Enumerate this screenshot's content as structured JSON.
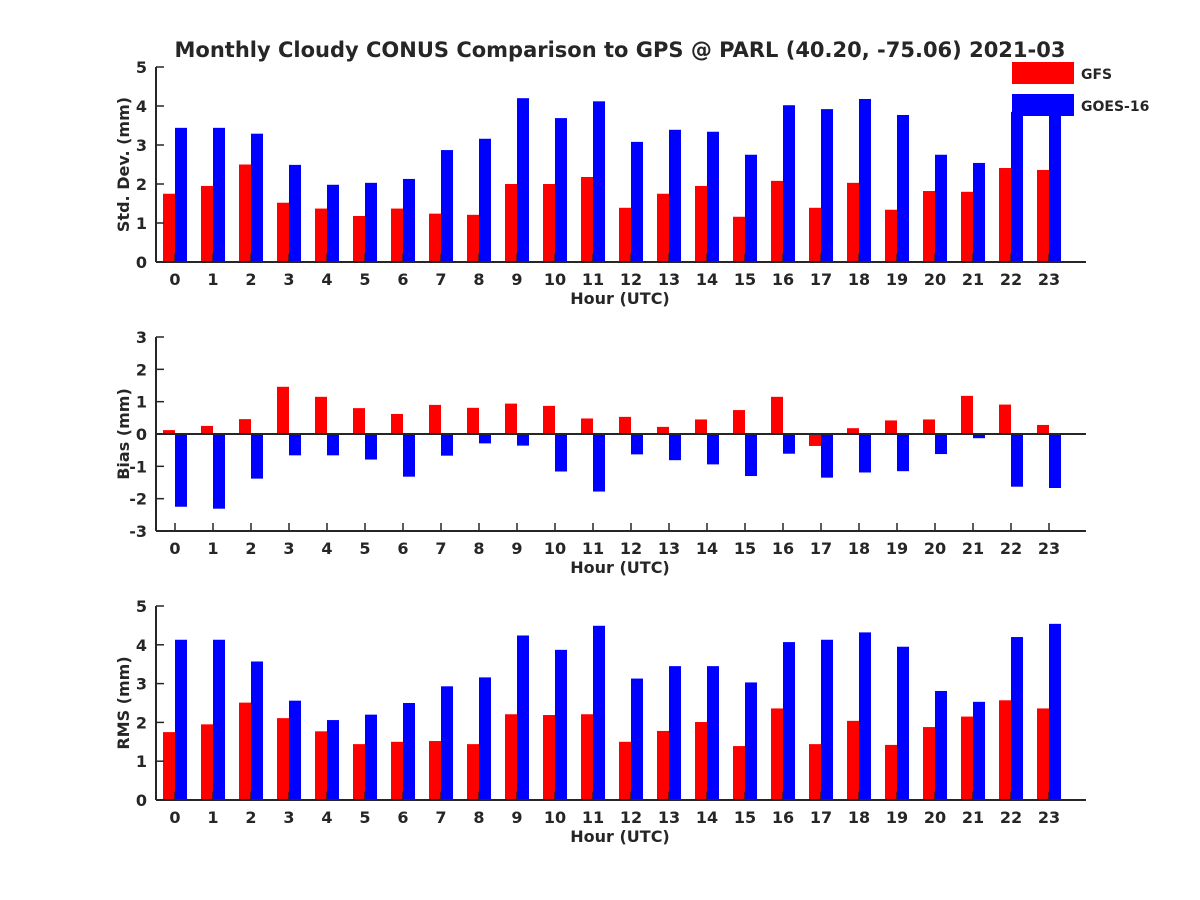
{
  "title": "Monthly Cloudy CONUS Comparison to GPS @ PARL (40.20, -75.06) 2021-03",
  "legend": {
    "placement": "top-right",
    "items": [
      {
        "label": "GFS",
        "color": "#ff0000"
      },
      {
        "label": "GOES-16",
        "color": "#0000ff"
      }
    ]
  },
  "chart_data": [
    {
      "type": "bar",
      "ylabel": "Std. Dev. (mm)",
      "xlabel": "Hour (UTC)",
      "ylim": [
        0,
        5
      ],
      "yticks": [
        0,
        1,
        2,
        3,
        4,
        5
      ],
      "categories": [
        "0",
        "1",
        "2",
        "3",
        "4",
        "5",
        "6",
        "7",
        "8",
        "9",
        "10",
        "11",
        "12",
        "13",
        "14",
        "15",
        "16",
        "17",
        "18",
        "19",
        "20",
        "21",
        "22",
        "23"
      ],
      "series": [
        {
          "name": "GFS",
          "color": "#ff0000",
          "values": [
            1.75,
            1.95,
            2.5,
            1.52,
            1.37,
            1.18,
            1.37,
            1.24,
            1.21,
            2.0,
            2.0,
            2.18,
            1.39,
            1.75,
            1.95,
            1.16,
            2.08,
            1.39,
            2.03,
            1.34,
            1.82,
            1.8,
            2.41,
            2.36
          ]
        },
        {
          "name": "GOES-16",
          "color": "#0000ff",
          "values": [
            3.44,
            3.44,
            3.29,
            2.49,
            1.98,
            2.03,
            2.13,
            2.87,
            3.16,
            4.2,
            3.69,
            4.12,
            3.08,
            3.39,
            3.34,
            2.75,
            4.02,
            3.92,
            4.18,
            3.77,
            2.75,
            2.54,
            3.85,
            3.85
          ]
        }
      ]
    },
    {
      "type": "bar",
      "ylabel": "Bias (mm)",
      "xlabel": "Hour (UTC)",
      "ylim": [
        -3,
        3
      ],
      "yticks": [
        -3,
        -2,
        -1,
        0,
        1,
        2,
        3
      ],
      "categories": [
        "0",
        "1",
        "2",
        "3",
        "4",
        "5",
        "6",
        "7",
        "8",
        "9",
        "10",
        "11",
        "12",
        "13",
        "14",
        "15",
        "16",
        "17",
        "18",
        "19",
        "20",
        "21",
        "22",
        "23"
      ],
      "series": [
        {
          "name": "GFS",
          "color": "#ff0000",
          "values": [
            0.12,
            0.25,
            0.46,
            1.46,
            1.15,
            0.8,
            0.62,
            0.9,
            0.81,
            0.94,
            0.87,
            0.48,
            0.53,
            0.22,
            0.45,
            0.74,
            1.15,
            -0.37,
            0.18,
            0.42,
            0.45,
            1.18,
            0.91,
            0.28
          ]
        },
        {
          "name": "GOES-16",
          "color": "#0000ff",
          "values": [
            -2.25,
            -2.31,
            -1.38,
            -0.66,
            -0.66,
            -0.79,
            -1.32,
            -0.67,
            -0.29,
            -0.36,
            -1.16,
            -1.78,
            -0.63,
            -0.81,
            -0.94,
            -1.3,
            -0.61,
            -1.35,
            -1.19,
            -1.15,
            -0.62,
            -0.13,
            -1.63,
            -1.67
          ]
        }
      ]
    },
    {
      "type": "bar",
      "ylabel": "RMS (mm)",
      "xlabel": "Hour (UTC)",
      "ylim": [
        0,
        5
      ],
      "yticks": [
        0,
        1,
        2,
        3,
        4,
        5
      ],
      "categories": [
        "0",
        "1",
        "2",
        "3",
        "4",
        "5",
        "6",
        "7",
        "8",
        "9",
        "10",
        "11",
        "12",
        "13",
        "14",
        "15",
        "16",
        "17",
        "18",
        "19",
        "20",
        "21",
        "22",
        "23"
      ],
      "series": [
        {
          "name": "GFS",
          "color": "#ff0000",
          "values": [
            1.75,
            1.95,
            2.51,
            2.11,
            1.77,
            1.44,
            1.5,
            1.52,
            1.44,
            2.21,
            2.19,
            2.21,
            1.5,
            1.78,
            2.01,
            1.39,
            2.36,
            1.44,
            2.04,
            1.42,
            1.88,
            2.15,
            2.57,
            2.36
          ]
        },
        {
          "name": "GOES-16",
          "color": "#0000ff",
          "values": [
            4.13,
            4.13,
            3.57,
            2.56,
            2.06,
            2.2,
            2.5,
            2.93,
            3.16,
            4.24,
            3.87,
            4.49,
            3.13,
            3.45,
            3.45,
            3.03,
            4.07,
            4.13,
            4.32,
            3.95,
            2.81,
            2.53,
            4.2,
            4.54
          ]
        }
      ]
    }
  ]
}
